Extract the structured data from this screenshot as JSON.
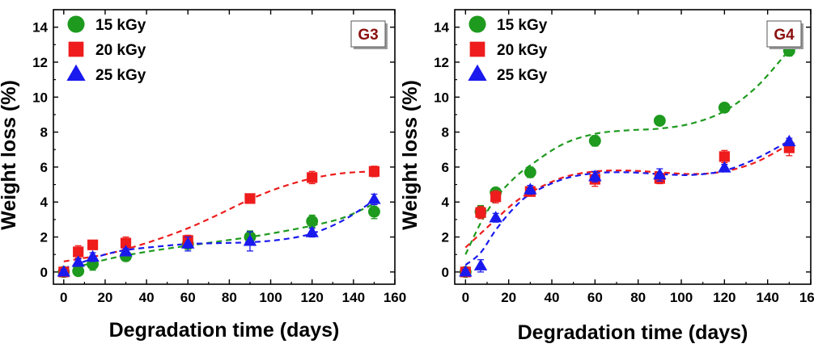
{
  "chart_data": [
    {
      "type": "scatter",
      "panel_label": "G3",
      "xlabel": "Degradation time (days)",
      "ylabel": "Weight loss (%)",
      "xlim": [
        -5,
        160
      ],
      "ylim": [
        -0.7,
        15
      ],
      "xticks": [
        0,
        20,
        40,
        60,
        80,
        100,
        120,
        140,
        160
      ],
      "yticks": [
        0,
        2,
        4,
        6,
        8,
        10,
        12,
        14
      ],
      "legend_position": "top-left",
      "fit_lines": "dashed",
      "series": [
        {
          "name": "15 kGy",
          "color": "#1e9a1e",
          "marker": "circle",
          "x": [
            0,
            7,
            14,
            30,
            60,
            90,
            120,
            150
          ],
          "y": [
            0.0,
            0.05,
            0.45,
            0.9,
            1.6,
            2.0,
            2.9,
            3.45
          ],
          "err": [
            0.15,
            0.15,
            0.35,
            0.15,
            0.3,
            0.35,
            0.35,
            0.4
          ],
          "fit": [
            [
              0,
              0.1
            ],
            [
              10,
              0.4
            ],
            [
              20,
              0.7
            ],
            [
              30,
              0.95
            ],
            [
              45,
              1.25
            ],
            [
              60,
              1.5
            ],
            [
              75,
              1.75
            ],
            [
              90,
              2.0
            ],
            [
              105,
              2.3
            ],
            [
              120,
              2.65
            ],
            [
              135,
              3.1
            ],
            [
              150,
              3.9
            ]
          ]
        },
        {
          "name": "20 kGy",
          "color": "#ee1c1c",
          "marker": "square",
          "x": [
            0,
            7,
            14,
            30,
            60,
            90,
            120,
            150
          ],
          "y": [
            0.0,
            1.15,
            1.55,
            1.65,
            1.8,
            4.2,
            5.4,
            5.75
          ],
          "err": [
            0.15,
            0.35,
            0.15,
            0.35,
            0.3,
            0.15,
            0.35,
            0.3
          ],
          "fit": [
            [
              0,
              0.6
            ],
            [
              10,
              0.8
            ],
            [
              20,
              1.0
            ],
            [
              30,
              1.3
            ],
            [
              45,
              1.85
            ],
            [
              60,
              2.5
            ],
            [
              75,
              3.3
            ],
            [
              90,
              4.15
            ],
            [
              105,
              4.85
            ],
            [
              120,
              5.35
            ],
            [
              135,
              5.65
            ],
            [
              150,
              5.75
            ]
          ]
        },
        {
          "name": "25 kGy",
          "color": "#1a1aee",
          "marker": "triangle",
          "x": [
            0,
            7,
            14,
            30,
            60,
            90,
            120,
            150
          ],
          "y": [
            0.0,
            0.55,
            0.85,
            1.15,
            1.6,
            1.75,
            2.25,
            4.15
          ],
          "err": [
            0.15,
            0.2,
            0.25,
            0.2,
            0.4,
            0.55,
            0.25,
            0.3
          ],
          "fit": [
            [
              0,
              0.2
            ],
            [
              10,
              0.6
            ],
            [
              20,
              1.0
            ],
            [
              30,
              1.25
            ],
            [
              45,
              1.45
            ],
            [
              60,
              1.6
            ],
            [
              75,
              1.65
            ],
            [
              90,
              1.7
            ],
            [
              105,
              1.85
            ],
            [
              120,
              2.2
            ],
            [
              135,
              2.95
            ],
            [
              150,
              4.1
            ]
          ]
        }
      ]
    },
    {
      "type": "scatter",
      "panel_label": "G4",
      "xlabel": "Degradation time (days)",
      "ylabel": "Weight loss (%)",
      "xlim": [
        -5,
        160
      ],
      "ylim": [
        -0.7,
        15
      ],
      "xticks": [
        0,
        20,
        40,
        60,
        80,
        100,
        120,
        140,
        160
      ],
      "yticks": [
        0,
        2,
        4,
        6,
        8,
        10,
        12,
        14
      ],
      "legend_position": "top-left",
      "fit_lines": "dashed",
      "series": [
        {
          "name": "15 kGy",
          "color": "#1e9a1e",
          "marker": "circle",
          "x": [
            0,
            7,
            14,
            30,
            60,
            90,
            120,
            150
          ],
          "y": [
            0.0,
            3.45,
            4.55,
            5.7,
            7.5,
            8.65,
            9.4,
            12.65
          ],
          "err": [
            0.15,
            0.35,
            0.25,
            0.3,
            0.3,
            0.25,
            0.25,
            0.3
          ],
          "fit": [
            [
              0,
              1.0
            ],
            [
              7,
              2.8
            ],
            [
              14,
              4.2
            ],
            [
              22,
              5.3
            ],
            [
              30,
              6.1
            ],
            [
              45,
              7.3
            ],
            [
              60,
              7.9
            ],
            [
              75,
              8.1
            ],
            [
              90,
              8.2
            ],
            [
              105,
              8.5
            ],
            [
              120,
              9.2
            ],
            [
              135,
              10.6
            ],
            [
              150,
              12.7
            ]
          ]
        },
        {
          "name": "20 kGy",
          "color": "#ee1c1c",
          "marker": "square",
          "x": [
            0,
            7,
            14,
            30,
            60,
            90,
            120,
            150
          ],
          "y": [
            0.0,
            3.4,
            4.3,
            4.6,
            5.3,
            5.35,
            6.6,
            7.1
          ],
          "err": [
            0.15,
            0.35,
            0.35,
            0.25,
            0.4,
            0.3,
            0.35,
            0.45
          ],
          "fit": [
            [
              0,
              1.4
            ],
            [
              7,
              2.2
            ],
            [
              14,
              3.0
            ],
            [
              22,
              3.9
            ],
            [
              30,
              4.55
            ],
            [
              45,
              5.4
            ],
            [
              60,
              5.75
            ],
            [
              75,
              5.8
            ],
            [
              90,
              5.7
            ],
            [
              105,
              5.6
            ],
            [
              120,
              5.75
            ],
            [
              135,
              6.3
            ],
            [
              150,
              7.3
            ]
          ]
        },
        {
          "name": "25 kGy",
          "color": "#1a1aee",
          "marker": "triangle",
          "x": [
            0,
            7,
            14,
            30,
            60,
            90,
            120,
            150
          ],
          "y": [
            0.0,
            0.35,
            3.1,
            4.7,
            5.45,
            5.55,
            5.95,
            7.45
          ],
          "err": [
            0.15,
            0.35,
            0.25,
            0.25,
            0.3,
            0.35,
            0.2,
            0.2
          ],
          "fit": [
            [
              0,
              0.4
            ],
            [
              7,
              1.1
            ],
            [
              14,
              2.4
            ],
            [
              22,
              3.6
            ],
            [
              30,
              4.45
            ],
            [
              45,
              5.3
            ],
            [
              60,
              5.65
            ],
            [
              75,
              5.7
            ],
            [
              90,
              5.6
            ],
            [
              105,
              5.55
            ],
            [
              120,
              5.8
            ],
            [
              135,
              6.5
            ],
            [
              150,
              7.5
            ]
          ]
        }
      ]
    }
  ]
}
